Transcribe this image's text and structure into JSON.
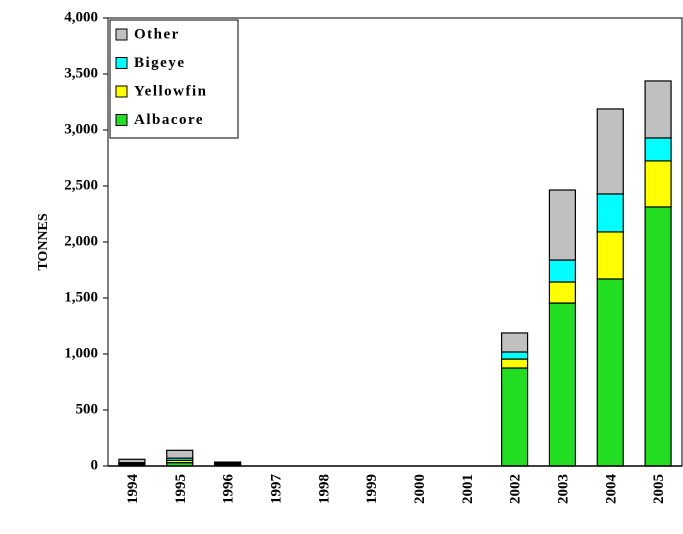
{
  "chart_data": {
    "type": "bar",
    "stacked": true,
    "y_label": "TONNES",
    "categories": [
      "1994",
      "1995",
      "1996",
      "1997",
      "1998",
      "1999",
      "2000",
      "2001",
      "2002",
      "2003",
      "2004",
      "2005"
    ],
    "series": [
      {
        "name": "Albacore",
        "color": "#22dd22",
        "values": [
          10,
          30,
          10,
          0,
          0,
          0,
          0,
          0,
          875,
          1455,
          1670,
          2313
        ]
      },
      {
        "name": "Yellowfin",
        "color": "#ffff00",
        "values": [
          10,
          20,
          10,
          0,
          0,
          0,
          0,
          0,
          80,
          188,
          420,
          411
        ]
      },
      {
        "name": "Bigeye",
        "color": "#00ffff",
        "values": [
          10,
          20,
          5,
          0,
          0,
          0,
          0,
          0,
          63,
          196,
          339,
          205
        ]
      },
      {
        "name": "Other",
        "color": "#c0c0c0",
        "values": [
          30,
          70,
          10,
          0,
          0,
          0,
          0,
          0,
          170,
          625,
          759,
          509
        ]
      }
    ],
    "ylim": [
      0,
      4000
    ],
    "yticks": [
      0,
      500,
      {
        "value": 1000,
        "label": "1,000"
      },
      {
        "value": 1500,
        "label": "1,500"
      },
      {
        "value": 2000,
        "label": "2,000"
      },
      {
        "value": 2500,
        "label": "2,500"
      },
      {
        "value": 3000,
        "label": "3,000"
      },
      {
        "value": 3500,
        "label": "3,500"
      },
      {
        "value": 4000,
        "label": "4,000"
      }
    ],
    "legend": "top-left"
  }
}
